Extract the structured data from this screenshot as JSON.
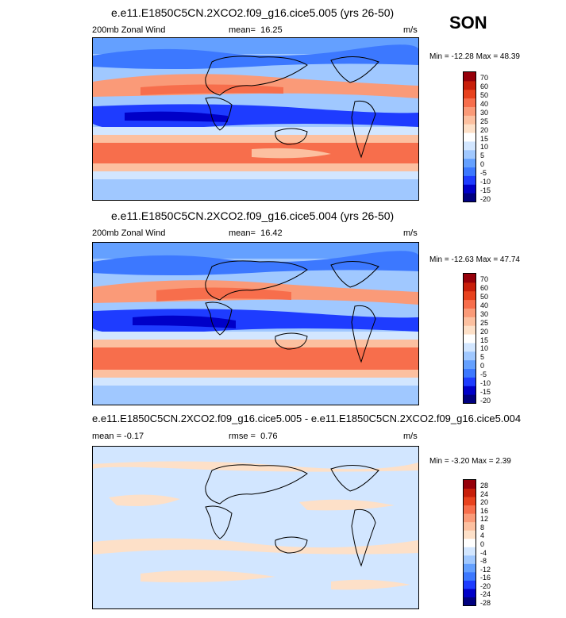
{
  "season": "SON",
  "panels": [
    {
      "title": "e.e11.E1850C5CN.2XCO2.f09_g16.cice5.005 (yrs 26-50)",
      "left_label": "200mb Zonal Wind",
      "stat_label": "mean=",
      "stat_value": "16.25",
      "units": "m/s",
      "minmax": "Min = -12.28 Max =  48.39",
      "colorbar": {
        "colors": [
          "#00007f",
          "#0000c8",
          "#1e3cff",
          "#3c78ff",
          "#64a0ff",
          "#a0c8ff",
          "#d2e6ff",
          "#ffffff",
          "#fde0c8",
          "#fcc0a0",
          "#fa9a78",
          "#f76e4c",
          "#e8421e",
          "#c81e0a",
          "#96000a"
        ],
        "labels": [
          "70",
          "60",
          "50",
          "40",
          "30",
          "25",
          "20",
          "15",
          "10",
          "5",
          "0",
          "-5",
          "-10",
          "-15",
          "-20"
        ]
      }
    },
    {
      "title": "e.e11.E1850C5CN.2XCO2.f09_g16.cice5.004 (yrs 26-50)",
      "left_label": "200mb Zonal Wind",
      "stat_label": "mean=",
      "stat_value": "16.42",
      "units": "m/s",
      "minmax": "Min = -12.63 Max =  47.74",
      "colorbar": {
        "colors": [
          "#00007f",
          "#0000c8",
          "#1e3cff",
          "#3c78ff",
          "#64a0ff",
          "#a0c8ff",
          "#d2e6ff",
          "#ffffff",
          "#fde0c8",
          "#fcc0a0",
          "#fa9a78",
          "#f76e4c",
          "#e8421e",
          "#c81e0a",
          "#96000a"
        ],
        "labels": [
          "70",
          "60",
          "50",
          "40",
          "30",
          "25",
          "20",
          "15",
          "10",
          "5",
          "0",
          "-5",
          "-10",
          "-15",
          "-20"
        ]
      }
    },
    {
      "title": "e.e11.E1850C5CN.2XCO2.f09_g16.cice5.005 - e.e11.E1850C5CN.2XCO2.f09_g16.cice5.004",
      "left_label": "mean =  -0.17",
      "stat_label": "rmse =",
      "stat_value": "0.76",
      "units": "m/s",
      "minmax": "Min = -3.20 Max =  2.39",
      "colorbar": {
        "colors": [
          "#00007f",
          "#0000c8",
          "#1e3cff",
          "#3c78ff",
          "#64a0ff",
          "#a0c8ff",
          "#d2e6ff",
          "#ffffff",
          "#fde0c8",
          "#fcc0a0",
          "#fa9a78",
          "#f76e4c",
          "#e8421e",
          "#c81e0a",
          "#96000a"
        ],
        "labels": [
          "28",
          "24",
          "20",
          "16",
          "12",
          "8",
          "4",
          "0",
          "-4",
          "-8",
          "-12",
          "-16",
          "-20",
          "-24",
          "-28"
        ]
      }
    }
  ]
}
